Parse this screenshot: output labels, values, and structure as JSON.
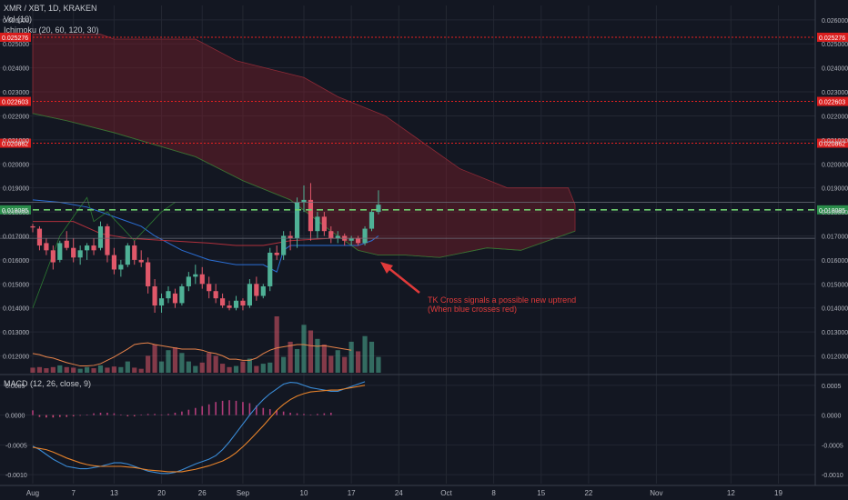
{
  "header": {
    "symbol": "XMR / XBT, 1D, KRAKEN",
    "volume_indicator": "Vol (10)",
    "ichimoku_indicator": "Ichimoku (20, 60, 120, 30)",
    "macd_indicator": "MACD (12, 26, close, 9)"
  },
  "annotation": {
    "line1": "TK Cross signals a possible new uptrend",
    "line2": "(When blue crosses red)"
  },
  "colors": {
    "background": "#131722",
    "grid": "#232732",
    "axis_text": "#b2b5be",
    "up_candle": "#4fb196",
    "down_candle": "#e0586a",
    "cloud_red": "#7a1e2a",
    "tenkan_blue": "#2b6fd6",
    "kijun_red": "#b0303c",
    "chikou_green": "#2c7a32",
    "level_line": "#e62020",
    "dashed_green": "#6fce6f",
    "volume_ma": "#e8834a",
    "macd_line": "#3a8bd6",
    "signal_line": "#e8832a",
    "annotation": "#e03a3a"
  },
  "chart_data": [
    {
      "type": "candlestick",
      "title": "XMR / XBT, 1D, KRAKEN",
      "y_ticks": [
        "0.026000",
        "0.025000",
        "0.024000",
        "0.023000",
        "0.022000",
        "0.021000",
        "0.020000",
        "0.019000",
        "0.018000",
        "0.017000",
        "0.016000",
        "0.015000",
        "0.014000",
        "0.013000",
        "0.012000"
      ],
      "y_tick_values": [
        0.026,
        0.025,
        0.024,
        0.023,
        0.022,
        0.021,
        0.02,
        0.019,
        0.018,
        0.017,
        0.016,
        0.015,
        0.014,
        0.013,
        0.012
      ],
      "ylim": [
        0.0113,
        0.0266
      ],
      "x_tick_labels": [
        "Aug",
        "7",
        "13",
        "20",
        "26",
        "Sep",
        "10",
        "17",
        "24",
        "Oct",
        "8",
        "15",
        "22",
        "Nov",
        "12",
        "19"
      ],
      "x_tick_days": [
        0,
        6,
        12,
        19,
        25,
        31,
        40,
        47,
        54,
        61,
        68,
        75,
        82,
        92,
        103,
        110
      ],
      "price_levels": [
        {
          "label": "0.025276",
          "value": 0.025276
        },
        {
          "label": "0.022603",
          "value": 0.022603
        },
        {
          "label": "0.020862",
          "value": 0.020862
        },
        {
          "label": "0.018085",
          "value": 0.018085
        }
      ],
      "horizontal_lines": [
        0.0184,
        0.0169
      ],
      "candles": [
        {
          "o": 0.0174,
          "h": 0.0175,
          "l": 0.01715,
          "c": 0.01735
        },
        {
          "o": 0.0173,
          "h": 0.0174,
          "l": 0.0164,
          "c": 0.0166
        },
        {
          "o": 0.0167,
          "h": 0.0169,
          "l": 0.0162,
          "c": 0.0164
        },
        {
          "o": 0.0164,
          "h": 0.0166,
          "l": 0.0156,
          "c": 0.0159
        },
        {
          "o": 0.016,
          "h": 0.0168,
          "l": 0.0159,
          "c": 0.0167
        },
        {
          "o": 0.0168,
          "h": 0.0172,
          "l": 0.0164,
          "c": 0.0165
        },
        {
          "o": 0.0165,
          "h": 0.0169,
          "l": 0.0159,
          "c": 0.0161
        },
        {
          "o": 0.0161,
          "h": 0.0166,
          "l": 0.0158,
          "c": 0.0164
        },
        {
          "o": 0.0164,
          "h": 0.0167,
          "l": 0.016,
          "c": 0.0166
        },
        {
          "o": 0.0166,
          "h": 0.0169,
          "l": 0.0162,
          "c": 0.0164
        },
        {
          "o": 0.0165,
          "h": 0.0176,
          "l": 0.0164,
          "c": 0.0174
        },
        {
          "o": 0.0174,
          "h": 0.0175,
          "l": 0.0159,
          "c": 0.0162
        },
        {
          "o": 0.0162,
          "h": 0.0165,
          "l": 0.0154,
          "c": 0.0156
        },
        {
          "o": 0.0156,
          "h": 0.016,
          "l": 0.0153,
          "c": 0.0158
        },
        {
          "o": 0.0158,
          "h": 0.0167,
          "l": 0.0157,
          "c": 0.0166
        },
        {
          "o": 0.0166,
          "h": 0.0168,
          "l": 0.0158,
          "c": 0.016
        },
        {
          "o": 0.016,
          "h": 0.0164,
          "l": 0.0157,
          "c": 0.0159
        },
        {
          "o": 0.0159,
          "h": 0.0161,
          "l": 0.0146,
          "c": 0.0149
        },
        {
          "o": 0.0149,
          "h": 0.0152,
          "l": 0.0138,
          "c": 0.0141
        },
        {
          "o": 0.0141,
          "h": 0.0146,
          "l": 0.0138,
          "c": 0.0144
        },
        {
          "o": 0.0144,
          "h": 0.0149,
          "l": 0.0142,
          "c": 0.0147
        },
        {
          "o": 0.0146,
          "h": 0.0148,
          "l": 0.014,
          "c": 0.0142
        },
        {
          "o": 0.0142,
          "h": 0.015,
          "l": 0.0141,
          "c": 0.0149
        },
        {
          "o": 0.0149,
          "h": 0.0155,
          "l": 0.0147,
          "c": 0.0153
        },
        {
          "o": 0.0153,
          "h": 0.0158,
          "l": 0.015,
          "c": 0.0154
        },
        {
          "o": 0.0154,
          "h": 0.0157,
          "l": 0.0148,
          "c": 0.015
        },
        {
          "o": 0.015,
          "h": 0.0153,
          "l": 0.0144,
          "c": 0.0147
        },
        {
          "o": 0.0147,
          "h": 0.015,
          "l": 0.0142,
          "c": 0.0144
        },
        {
          "o": 0.0144,
          "h": 0.0146,
          "l": 0.014,
          "c": 0.0141
        },
        {
          "o": 0.0141,
          "h": 0.0143,
          "l": 0.0139,
          "c": 0.014
        },
        {
          "o": 0.014,
          "h": 0.0145,
          "l": 0.0139,
          "c": 0.0143
        },
        {
          "o": 0.0143,
          "h": 0.0144,
          "l": 0.0139,
          "c": 0.0141
        },
        {
          "o": 0.0141,
          "h": 0.0152,
          "l": 0.014,
          "c": 0.015
        },
        {
          "o": 0.015,
          "h": 0.0153,
          "l": 0.0143,
          "c": 0.0145
        },
        {
          "o": 0.0145,
          "h": 0.015,
          "l": 0.0144,
          "c": 0.0149
        },
        {
          "o": 0.0149,
          "h": 0.0165,
          "l": 0.0147,
          "c": 0.0163
        },
        {
          "o": 0.0163,
          "h": 0.0166,
          "l": 0.016,
          "c": 0.0162
        },
        {
          "o": 0.0162,
          "h": 0.0172,
          "l": 0.016,
          "c": 0.017
        },
        {
          "o": 0.017,
          "h": 0.0172,
          "l": 0.0164,
          "c": 0.0169
        },
        {
          "o": 0.0169,
          "h": 0.0186,
          "l": 0.0165,
          "c": 0.0184
        },
        {
          "o": 0.0184,
          "h": 0.0191,
          "l": 0.018,
          "c": 0.0185
        },
        {
          "o": 0.0185,
          "h": 0.0192,
          "l": 0.0168,
          "c": 0.0172
        },
        {
          "o": 0.0172,
          "h": 0.018,
          "l": 0.0169,
          "c": 0.0178
        },
        {
          "o": 0.0178,
          "h": 0.018,
          "l": 0.017,
          "c": 0.0172
        },
        {
          "o": 0.0172,
          "h": 0.0174,
          "l": 0.0167,
          "c": 0.0169
        },
        {
          "o": 0.0169,
          "h": 0.0172,
          "l": 0.0167,
          "c": 0.017
        },
        {
          "o": 0.017,
          "h": 0.0171,
          "l": 0.0166,
          "c": 0.0168
        },
        {
          "o": 0.0168,
          "h": 0.017,
          "l": 0.0166,
          "c": 0.0169
        },
        {
          "o": 0.0169,
          "h": 0.017,
          "l": 0.0166,
          "c": 0.0167
        },
        {
          "o": 0.0167,
          "h": 0.0174,
          "l": 0.0166,
          "c": 0.0173
        },
        {
          "o": 0.0173,
          "h": 0.0181,
          "l": 0.0172,
          "c": 0.018
        },
        {
          "o": 0.018,
          "h": 0.0189,
          "l": 0.0179,
          "c": 0.0183
        }
      ],
      "volume": [
        0.09,
        0.1,
        0.08,
        0.1,
        0.13,
        0.1,
        0.09,
        0.07,
        0.1,
        0.08,
        0.13,
        0.09,
        0.11,
        0.1,
        0.2,
        0.09,
        0.07,
        0.3,
        0.5,
        0.2,
        0.4,
        0.45,
        0.35,
        0.2,
        0.12,
        0.18,
        0.35,
        0.3,
        0.16,
        0.1,
        0.12,
        0.2,
        0.25,
        0.12,
        0.16,
        0.18,
        1.0,
        0.28,
        0.55,
        0.42,
        0.85,
        0.75,
        0.6,
        0.5,
        0.3,
        0.4,
        0.28,
        0.55,
        0.38,
        0.65,
        0.55,
        0.28
      ],
      "volume_ma": [
        0.34,
        0.32,
        0.28,
        0.26,
        0.22,
        0.18,
        0.15,
        0.12,
        0.12,
        0.13,
        0.16,
        0.22,
        0.28,
        0.35,
        0.42,
        0.5,
        0.52,
        0.53,
        0.5,
        0.48,
        0.46,
        0.44,
        0.42,
        0.42,
        0.42,
        0.4,
        0.36,
        0.34,
        0.3,
        0.24,
        0.24,
        0.22,
        0.22,
        0.26,
        0.34,
        0.4,
        0.44,
        0.46,
        0.48,
        0.5,
        0.5,
        0.48,
        0.47,
        0.48,
        0.46,
        0.44,
        0.42,
        0.4
      ]
    },
    {
      "type": "line",
      "title": "MACD (12, 26, close, 9)",
      "y_ticks": [
        "0.0005",
        "0.0000",
        "-0.0005",
        "-0.0010"
      ],
      "y_tick_values": [
        0.0005,
        0.0,
        -0.0005,
        -0.001
      ],
      "ylim": [
        -0.00115,
        0.00065
      ],
      "series": [
        {
          "name": "MACD",
          "values": [
            -0.00052,
            -0.00058,
            -0.00066,
            -0.00074,
            -0.0008,
            -0.00086,
            -0.00088,
            -0.0009,
            -0.0009,
            -0.00088,
            -0.00086,
            -0.00083,
            -0.0008,
            -0.0008,
            -0.00082,
            -0.00086,
            -0.0009,
            -0.00094,
            -0.00096,
            -0.00098,
            -0.00098,
            -0.00096,
            -0.00092,
            -0.00087,
            -0.00082,
            -0.00078,
            -0.00074,
            -0.00068,
            -0.00058,
            -0.00045,
            -0.0003,
            -0.00015,
            0.0,
            0.00014,
            0.00026,
            0.00036,
            0.00044,
            0.00052,
            0.00055,
            0.00054,
            0.0005,
            0.00046,
            0.00044,
            0.00042,
            0.0004,
            0.0004,
            0.00044,
            0.00048,
            0.00052,
            0.00056
          ]
        },
        {
          "name": "Signal",
          "values": [
            -0.00054,
            -0.00056,
            -0.00058,
            -0.00062,
            -0.00067,
            -0.00072,
            -0.00076,
            -0.0008,
            -0.00083,
            -0.00085,
            -0.00086,
            -0.00086,
            -0.00086,
            -0.00086,
            -0.00087,
            -0.00088,
            -0.0009,
            -0.00092,
            -0.00093,
            -0.00094,
            -0.00095,
            -0.00095,
            -0.00095,
            -0.00093,
            -0.00091,
            -0.00088,
            -0.00085,
            -0.00081,
            -0.00077,
            -0.00071,
            -0.00063,
            -0.00053,
            -0.00042,
            -0.0003,
            -0.00018,
            -5e-05,
            8e-05,
            0.00018,
            0.00026,
            0.00032,
            0.00036,
            0.00039,
            0.0004,
            0.00041,
            0.00042,
            0.00042,
            0.00044,
            0.00046,
            0.00048,
            0.0005
          ]
        }
      ],
      "histogram": [
        8e-05,
        -3e-05,
        -4e-05,
        -4e-05,
        -3e-05,
        -3e-05,
        -2e-05,
        -1e-05,
        1e-05,
        3e-05,
        4e-05,
        4e-05,
        3e-05,
        1e-05,
        -2e-05,
        -2e-05,
        1e-05,
        2e-05,
        2e-05,
        1e-05,
        2e-05,
        4e-05,
        6e-05,
        9e-05,
        0.00012,
        0.00015,
        0.00018,
        0.00022,
        0.00024,
        0.00025,
        0.00024,
        0.00022,
        0.0002,
        0.00016,
        0.00012,
        0.0001,
        8e-05,
        6e-05,
        4e-05,
        3e-05,
        2e-05,
        1e-05,
        2e-05,
        3e-05,
        4e-05
      ]
    }
  ]
}
